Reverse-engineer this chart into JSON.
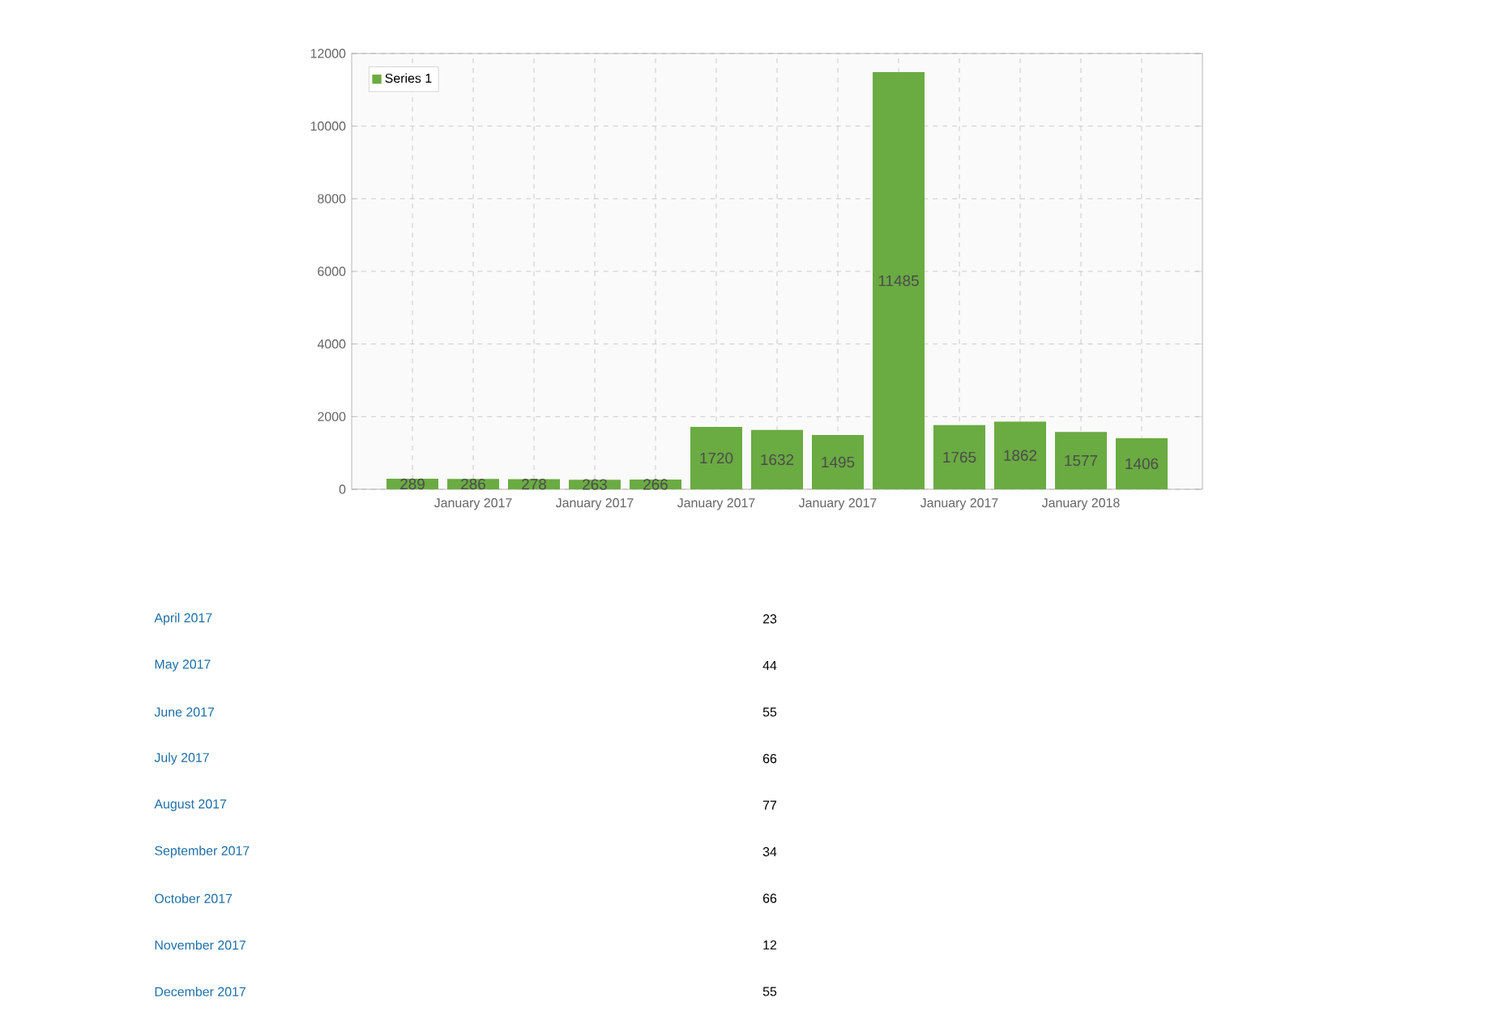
{
  "chart_data": [
    {
      "type": "bar",
      "categories": [
        null,
        "January 2017",
        null,
        "January 2017",
        null,
        "January 2017",
        null,
        "January 2017",
        null,
        "January 2017",
        null,
        "January 2018",
        null
      ],
      "series": [
        {
          "name": "Series 1",
          "color": "#6aab42",
          "values": [
            289,
            286,
            278,
            263,
            266,
            1720,
            1632,
            1495,
            11485,
            1765,
            1862,
            1577,
            1406
          ]
        }
      ],
      "ylim": [
        0,
        12000
      ],
      "yticks": [
        0,
        2000,
        4000,
        6000,
        8000,
        10000,
        12000
      ],
      "grid": true,
      "legend": "top left",
      "data_labels": true
    },
    {
      "type": "other",
      "categories": [
        "April 2017",
        "May 2017",
        "June 2017",
        "July 2017",
        "August 2017",
        "September 2017",
        "October 2017",
        "November 2017",
        "December 2017"
      ],
      "values": [
        23,
        44,
        55,
        66,
        77,
        34,
        66,
        12,
        55
      ],
      "data_labels": true
    }
  ]
}
